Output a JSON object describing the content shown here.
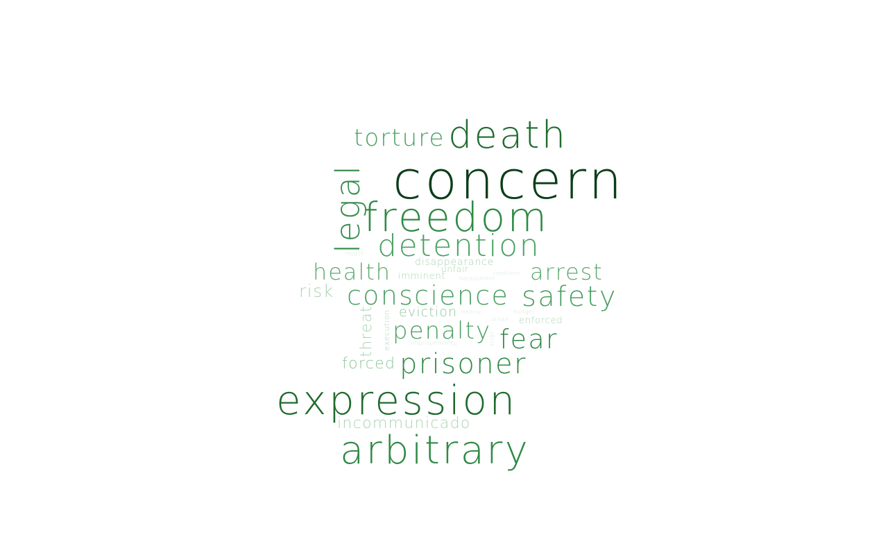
{
  "palette": {
    "darkest": "#0b3d1a",
    "dark": "#1f6b2e",
    "mid": "#2f8a45",
    "medium": "#4aa061",
    "light": "#7cbd8c",
    "lighter": "#a9d3b3",
    "faint": "#cfe6d4"
  },
  "words": [
    {
      "text": "concern",
      "weight": 100,
      "color": "#0b3d1a"
    },
    {
      "text": "expression",
      "weight": 82,
      "color": "#1f6b2e"
    },
    {
      "text": "freedom",
      "weight": 80,
      "color": "#2f8a45"
    },
    {
      "text": "death",
      "weight": 76,
      "color": "#1f6b2e"
    },
    {
      "text": "arbitrary",
      "weight": 76,
      "color": "#2f8a45"
    },
    {
      "text": "legal",
      "weight": 70,
      "color": "#3a8f50"
    },
    {
      "text": "detention",
      "weight": 66,
      "color": "#4aa061"
    },
    {
      "text": "prisoner",
      "weight": 62,
      "color": "#2f8a45"
    },
    {
      "text": "conscience",
      "weight": 58,
      "color": "#4aa061"
    },
    {
      "text": "safety",
      "weight": 58,
      "color": "#4aa061"
    },
    {
      "text": "penalty",
      "weight": 54,
      "color": "#4aa061"
    },
    {
      "text": "fear",
      "weight": 54,
      "color": "#2f8a45"
    },
    {
      "text": "torture",
      "weight": 52,
      "color": "#4aa061"
    },
    {
      "text": "arrest",
      "weight": 50,
      "color": "#5aa86e"
    },
    {
      "text": "health",
      "weight": 50,
      "color": "#5aa86e"
    },
    {
      "text": "risk",
      "weight": 38,
      "color": "#a9d3b3"
    },
    {
      "text": "threat",
      "weight": 34,
      "color": "#a9d3b3"
    },
    {
      "text": "forced",
      "weight": 34,
      "color": "#8ec69c"
    },
    {
      "text": "incommunicado",
      "weight": 34,
      "color": "#a9d3b3"
    },
    {
      "text": "eviction",
      "weight": 30,
      "color": "#8ec69c"
    },
    {
      "text": "disappearance",
      "weight": 22,
      "color": "#a9d3b3"
    },
    {
      "text": "imminent",
      "weight": 20,
      "color": "#a9d3b3"
    },
    {
      "text": "unfair",
      "weight": 18,
      "color": "#a9d3b3"
    },
    {
      "text": "enforced",
      "weight": 18,
      "color": "#a9d3b3"
    },
    {
      "text": "execution",
      "weight": 18,
      "color": "#a9d3b3"
    },
    {
      "text": "trial",
      "weight": 14,
      "color": "#cfe6d4"
    },
    {
      "text": "strike",
      "weight": 12,
      "color": "#cfe6d4"
    },
    {
      "text": "hunger",
      "weight": 12,
      "color": "#cfe6d4"
    },
    {
      "text": "injust",
      "weight": 12,
      "color": "#cfe6d4"
    },
    {
      "text": "imprisonment",
      "weight": 12,
      "color": "#cfe6d4"
    },
    {
      "text": "harassment",
      "weight": 11,
      "color": "#cfe6d4"
    },
    {
      "text": "conditions",
      "weight": 10,
      "color": "#cfe6d4"
    },
    {
      "text": "medical",
      "weight": 10,
      "color": "#cfe6d4"
    },
    {
      "text": "ill",
      "weight": 10,
      "color": "#cfe6d4"
    }
  ]
}
